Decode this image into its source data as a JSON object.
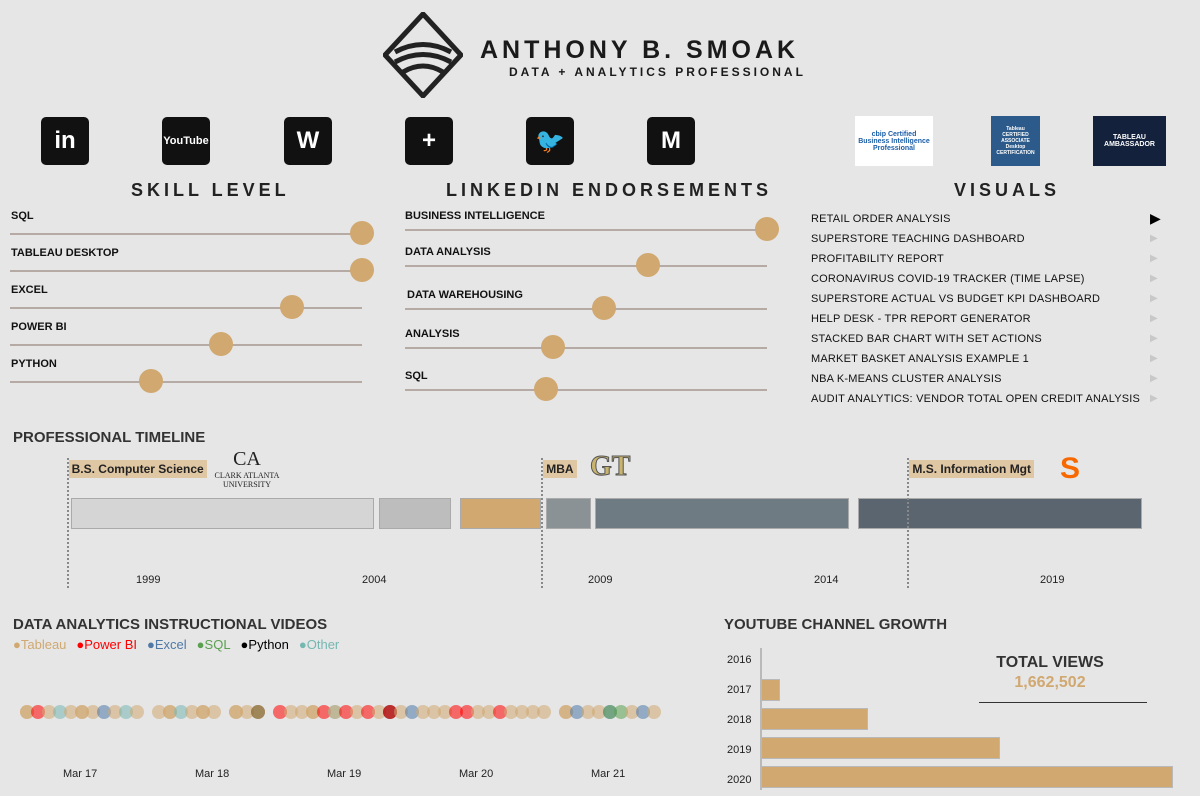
{
  "header": {
    "name": "ANTHONY B. SMOAK",
    "subtitle": "DATA + ANALYTICS PROFESSIONAL"
  },
  "social": [
    {
      "icon": "linkedin-icon",
      "glyph": "in"
    },
    {
      "icon": "youtube-icon",
      "glyph": "YouTube"
    },
    {
      "icon": "wordpress-icon",
      "glyph": "W"
    },
    {
      "icon": "tableau-icon",
      "glyph": "+"
    },
    {
      "icon": "twitter-icon",
      "glyph": "🐦"
    },
    {
      "icon": "gmail-icon",
      "glyph": "M"
    }
  ],
  "certs": [
    {
      "icon": "cbip-logo",
      "text": "cbip Certified Business Intelligence Professional"
    },
    {
      "icon": "tableau-certified-associate-badge",
      "text": "Tableau CERTIFIED ASSOCIATE Desktop CERTIFICATION"
    },
    {
      "icon": "tableau-ambassador-badge",
      "text": "TABLEAU AMBASSADOR"
    }
  ],
  "skills": {
    "title": "SKILL LEVEL",
    "items": [
      {
        "label": "SQL",
        "level": 1.0
      },
      {
        "label": "TABLEAU DESKTOP",
        "level": 1.0
      },
      {
        "label": "EXCEL",
        "level": 0.8
      },
      {
        "label": "POWER BI",
        "level": 0.6
      },
      {
        "label": "PYTHON",
        "level": 0.4
      }
    ]
  },
  "endorsements": {
    "title": "LINKEDIN ENDORSEMENTS",
    "items": [
      {
        "label": "BUSINESS INTELLIGENCE",
        "level": 1.0
      },
      {
        "label": "DATA ANALYSIS",
        "level": 0.67
      },
      {
        "label": "DATA WAREHOUSING",
        "level": 0.55
      },
      {
        "label": "ANALYSIS",
        "level": 0.41
      },
      {
        "label": "SQL",
        "level": 0.39
      }
    ]
  },
  "visuals": {
    "title": "VISUALS",
    "selected": 0,
    "items": [
      "RETAIL ORDER ANALYSIS",
      "SUPERSTORE TEACHING DASHBOARD",
      "PROFITABILITY REPORT",
      "CORONAVIRUS COVID-19 TRACKER (TIME LAPSE)",
      "SUPERSTORE ACTUAL VS BUDGET KPI DASHBOARD",
      "HELP DESK - TPR REPORT GENERATOR",
      "STACKED BAR CHART WITH SET ACTIONS",
      "MARKET BASKET ANALYSIS EXAMPLE 1",
      "NBA K-MEANS CLUSTER ANALYSIS",
      "AUDIT ANALYTICS: VENDOR TOTAL OPEN CREDIT ANALYSIS"
    ]
  },
  "timeline": {
    "title": "PROFESSIONAL TIMELINE",
    "ticks": [
      "1999",
      "2004",
      "2009",
      "2014",
      "2019"
    ],
    "segments": [
      {
        "start": 1997.3,
        "end": 2004.0,
        "color": "#d5d5d5"
      },
      {
        "start": 2004.1,
        "end": 2005.7,
        "color": "#bcbdbc"
      },
      {
        "start": 2005.9,
        "end": 2007.7,
        "color": "#d0a870"
      },
      {
        "start": 2007.8,
        "end": 2008.8,
        "color": "#8a9295"
      },
      {
        "start": 2008.9,
        "end": 2014.5,
        "color": "#6f7b82"
      },
      {
        "start": 2014.7,
        "end": 2021.0,
        "color": "#5a6570"
      }
    ],
    "degrees": [
      {
        "label": "B.S. Computer Science",
        "year": 1997.2,
        "school": "CLARK ATLANTA UNIVERSITY",
        "logo": "clark-atlanta-logo"
      },
      {
        "label": "MBA",
        "year": 2007.7,
        "school": "GT",
        "logo": "georgia-tech-logo"
      },
      {
        "label": "M.S. Information Mgt",
        "year": 2015.8,
        "school": "S",
        "logo": "syracuse-logo"
      }
    ]
  },
  "videos": {
    "title": "DATA ANALYTICS INSTRUCTIONAL VIDEOS",
    "legend": [
      {
        "label": "Tableau",
        "color": "#d0a870"
      },
      {
        "label": "Power BI",
        "color": "#ff0000"
      },
      {
        "label": "Excel",
        "color": "#4e79a7"
      },
      {
        "label": "SQL",
        "color": "#59a14f"
      },
      {
        "label": "Python",
        "color": "#000000"
      },
      {
        "label": "Other",
        "color": "#76b7b2"
      }
    ],
    "ticks": [
      "Mar 17",
      "Mar 18",
      "Mar 19",
      "Mar 20",
      "Mar 21"
    ]
  },
  "chart_data": [
    {
      "type": "scatter",
      "title": "DATA ANALYTICS INSTRUCTIONAL VIDEOS",
      "x_ticks": [
        "Mar 17",
        "Mar 18",
        "Mar 19",
        "Mar 20",
        "Mar 21"
      ],
      "points": [
        [
          "2016-10",
          "Tableau"
        ],
        [
          "2016-10",
          "Tableau"
        ],
        [
          "2016-11",
          "Power BI"
        ],
        [
          "2016-12",
          "Tableau"
        ],
        [
          "2017-01",
          "Other"
        ],
        [
          "2017-02",
          "Tableau"
        ],
        [
          "2017-03",
          "Tableau"
        ],
        [
          "2017-03",
          "Tableau"
        ],
        [
          "2017-04",
          "Tableau"
        ],
        [
          "2017-05",
          "Excel"
        ],
        [
          "2017-06",
          "Tableau"
        ],
        [
          "2017-07",
          "Other"
        ],
        [
          "2017-08",
          "Tableau"
        ],
        [
          "2017-10",
          "Tableau"
        ],
        [
          "2017-11",
          "Tableau"
        ],
        [
          "2017-11",
          "Tableau"
        ],
        [
          "2017-12",
          "Other"
        ],
        [
          "2018-01",
          "Tableau"
        ],
        [
          "2018-02",
          "Tableau"
        ],
        [
          "2018-02",
          "Tableau"
        ],
        [
          "2018-03",
          "Tableau"
        ],
        [
          "2018-05",
          "Tableau"
        ],
        [
          "2018-05",
          "Tableau"
        ],
        [
          "2018-06",
          "Tableau"
        ],
        [
          "2018-07",
          "Power BI"
        ],
        [
          "2018-07",
          "SQL"
        ],
        [
          "2018-09",
          "Power BI"
        ],
        [
          "2018-10",
          "Tableau"
        ],
        [
          "2018-11",
          "Tableau"
        ],
        [
          "2018-12",
          "Tableau"
        ],
        [
          "2018-12",
          "Tableau"
        ],
        [
          "2019-01",
          "Power BI"
        ],
        [
          "2019-02",
          "Other"
        ],
        [
          "2019-02",
          "Tableau"
        ],
        [
          "2019-03",
          "Power BI"
        ],
        [
          "2019-04",
          "Tableau"
        ],
        [
          "2019-05",
          "Power BI"
        ],
        [
          "2019-06",
          "Tableau"
        ],
        [
          "2019-07",
          "Python"
        ],
        [
          "2019-07",
          "Power BI"
        ],
        [
          "2019-08",
          "Tableau"
        ],
        [
          "2019-09",
          "Excel"
        ],
        [
          "2019-10",
          "Tableau"
        ],
        [
          "2019-11",
          "Tableau"
        ],
        [
          "2019-12",
          "Tableau"
        ],
        [
          "2020-01",
          "Power BI"
        ],
        [
          "2020-02",
          "Power BI"
        ],
        [
          "2020-03",
          "Tableau"
        ],
        [
          "2020-04",
          "Tableau"
        ],
        [
          "2020-05",
          "Power BI"
        ],
        [
          "2020-06",
          "Tableau"
        ],
        [
          "2020-07",
          "Tableau"
        ],
        [
          "2020-08",
          "Tableau"
        ],
        [
          "2020-09",
          "Tableau"
        ],
        [
          "2020-11",
          "Tableau"
        ],
        [
          "2020-11",
          "Tableau"
        ],
        [
          "2020-12",
          "Excel"
        ],
        [
          "2021-01",
          "Tableau"
        ],
        [
          "2021-02",
          "Tableau"
        ],
        [
          "2021-03",
          "Excel"
        ],
        [
          "2021-03",
          "SQL"
        ],
        [
          "2021-04",
          "SQL"
        ],
        [
          "2021-05",
          "Tableau"
        ],
        [
          "2021-06",
          "Excel"
        ],
        [
          "2021-07",
          "Tableau"
        ]
      ]
    },
    {
      "type": "bar",
      "orientation": "horizontal",
      "title": "YOUTUBE CHANNEL GROWTH",
      "categories": [
        "2016",
        "2017",
        "2018",
        "2019",
        "2020"
      ],
      "values_relative": [
        0.0,
        0.046,
        0.26,
        0.58,
        1.0
      ],
      "color": "#d0a870"
    }
  ],
  "youtube": {
    "title": "YOUTUBE CHANNEL GROWTH",
    "kpi_label": "TOTAL VIEWS",
    "kpi_value": "1,662,502"
  }
}
